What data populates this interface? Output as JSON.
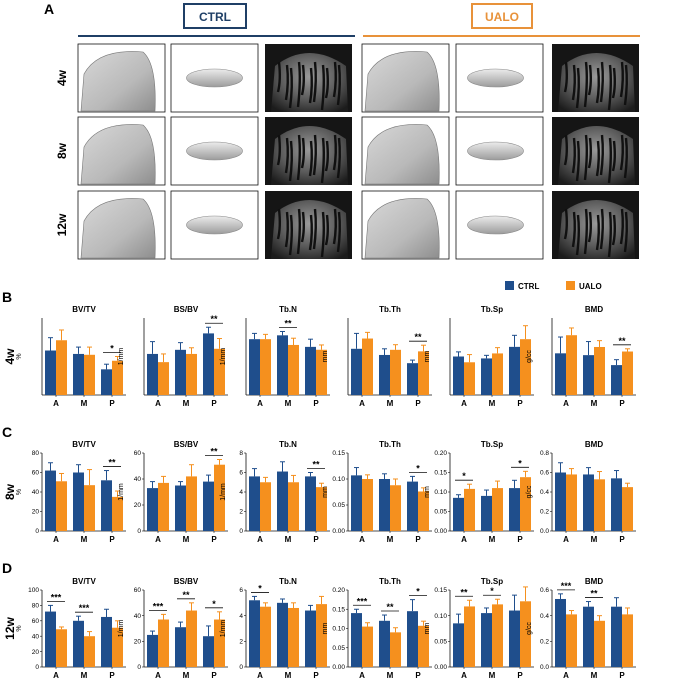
{
  "panels": {
    "A": "A",
    "B": "B",
    "C": "C",
    "D": "D"
  },
  "groups": {
    "ctrl": "CTRL",
    "ualo": "UALO"
  },
  "legend": {
    "ctrl": "CTRL",
    "ualo": "UALO"
  },
  "rows_A": [
    "4w",
    "8w",
    "12w"
  ],
  "colors": {
    "ctrl": "#1f4e8c",
    "ualo": "#f5901e",
    "ctrl_box": "#1f3f66",
    "ualo_box": "#e8923a"
  },
  "chart_data": [
    {
      "panel": "B",
      "row": "4w",
      "charts": [
        {
          "title": "BV/TV",
          "unit": "%",
          "ticks": [],
          "ylim": [
            0,
            90
          ],
          "categories": [
            "A",
            "M",
            "P"
          ],
          "ctrl": [
            52,
            48,
            30
          ],
          "ualo": [
            64,
            47,
            40
          ],
          "ctrl_err": [
            15,
            8,
            6
          ],
          "ualo_err": [
            12,
            9,
            5
          ],
          "sig": [
            "",
            "",
            "*"
          ]
        },
        {
          "title": "BS/BV",
          "unit": "1/mm",
          "ticks": [],
          "ylim": [
            0,
            75
          ],
          "categories": [
            "A",
            "M",
            "P"
          ],
          "ctrl": [
            40,
            44,
            60
          ],
          "ualo": [
            32,
            40,
            45
          ],
          "ctrl_err": [
            12,
            7,
            6
          ],
          "ualo_err": [
            8,
            6,
            10
          ],
          "sig": [
            "",
            "",
            "**"
          ]
        },
        {
          "title": "Tb.N",
          "unit": "1/mm",
          "ticks": [],
          "ylim": [
            0,
            8
          ],
          "categories": [
            "A",
            "M",
            "P"
          ],
          "ctrl": [
            5.8,
            6.2,
            5.0
          ],
          "ualo": [
            5.8,
            5.2,
            4.7
          ],
          "ctrl_err": [
            0.6,
            0.4,
            0.8
          ],
          "ualo_err": [
            0.5,
            0.7,
            0.5
          ],
          "sig": [
            "",
            "**",
            ""
          ]
        },
        {
          "title": "Tb.Th",
          "unit": "mm",
          "ticks": [],
          "ylim": [
            0,
            0.15
          ],
          "categories": [
            "A",
            "M",
            "P"
          ],
          "ctrl": [
            0.09,
            0.078,
            0.062
          ],
          "ualo": [
            0.11,
            0.088,
            0.085
          ],
          "ctrl_err": [
            0.03,
            0.012,
            0.006
          ],
          "ualo_err": [
            0.012,
            0.01,
            0.012
          ],
          "sig": [
            "",
            "",
            "**"
          ]
        },
        {
          "title": "Tb.Sp",
          "unit": "mm",
          "ticks": [],
          "ylim": [
            0,
            0.2
          ],
          "categories": [
            "A",
            "M",
            "P"
          ],
          "ctrl": [
            0.1,
            0.095,
            0.125
          ],
          "ualo": [
            0.085,
            0.108,
            0.145
          ],
          "ctrl_err": [
            0.012,
            0.008,
            0.03
          ],
          "ualo_err": [
            0.02,
            0.015,
            0.035
          ],
          "sig": [
            "",
            "",
            ""
          ]
        },
        {
          "title": "BMD",
          "unit": "g/cc",
          "ticks": [],
          "ylim": [
            0,
            0.85
          ],
          "categories": [
            "A",
            "M",
            "P"
          ],
          "ctrl": [
            0.46,
            0.44,
            0.33
          ],
          "ualo": [
            0.66,
            0.53,
            0.48
          ],
          "ctrl_err": [
            0.18,
            0.15,
            0.06
          ],
          "ualo_err": [
            0.08,
            0.07,
            0.03
          ],
          "sig": [
            "",
            "",
            "**"
          ]
        }
      ]
    },
    {
      "panel": "C",
      "row": "8w",
      "charts": [
        {
          "title": "BV/TV",
          "unit": "%",
          "ticks": [
            "0",
            "20",
            "40",
            "60",
            "80"
          ],
          "ylim": [
            0,
            80
          ],
          "categories": [
            "A",
            "M",
            "P"
          ],
          "ctrl": [
            62,
            60,
            52
          ],
          "ualo": [
            51,
            47,
            35
          ],
          "ctrl_err": [
            8,
            8,
            10
          ],
          "ualo_err": [
            8,
            16,
            6
          ],
          "sig": [
            "",
            "",
            "**"
          ]
        },
        {
          "title": "BS/BV",
          "unit": "1/mm",
          "ticks": [
            "0",
            "20",
            "40",
            "60"
          ],
          "ylim": [
            0,
            60
          ],
          "categories": [
            "A",
            "M",
            "P"
          ],
          "ctrl": [
            33,
            35,
            38
          ],
          "ualo": [
            37,
            42,
            51
          ],
          "ctrl_err": [
            5,
            3,
            5
          ],
          "ualo_err": [
            5,
            9,
            4
          ],
          "sig": [
            "",
            "",
            "**"
          ]
        },
        {
          "title": "Tb.N",
          "unit": "1/mm",
          "ticks": [
            "0",
            "2",
            "4",
            "6",
            "8"
          ],
          "ylim": [
            0,
            8
          ],
          "categories": [
            "A",
            "M",
            "P"
          ],
          "ctrl": [
            5.6,
            6.1,
            5.6
          ],
          "ualo": [
            5.0,
            5.0,
            4.5
          ],
          "ctrl_err": [
            0.8,
            1.0,
            0.4
          ],
          "ualo_err": [
            0.5,
            0.7,
            0.4
          ],
          "sig": [
            "",
            "",
            "**"
          ]
        },
        {
          "title": "Tb.Th",
          "unit": "mm",
          "ticks": [
            "0.00",
            "0.05",
            "0.10",
            "0.15"
          ],
          "ylim": [
            0,
            0.15
          ],
          "categories": [
            "A",
            "M",
            "P"
          ],
          "ctrl": [
            0.107,
            0.1,
            0.095
          ],
          "ualo": [
            0.1,
            0.088,
            0.076
          ],
          "ctrl_err": [
            0.015,
            0.01,
            0.01
          ],
          "ualo_err": [
            0.008,
            0.012,
            0.007
          ],
          "sig": [
            "",
            "",
            "*"
          ]
        },
        {
          "title": "Tb.Sp",
          "unit": "mm",
          "ticks": [
            "0.00",
            "0.05",
            "0.10",
            "0.15",
            "0.20"
          ],
          "ylim": [
            0,
            0.2
          ],
          "categories": [
            "A",
            "M",
            "P"
          ],
          "ctrl": [
            0.085,
            0.09,
            0.11
          ],
          "ualo": [
            0.108,
            0.11,
            0.138
          ],
          "ctrl_err": [
            0.008,
            0.015,
            0.02
          ],
          "ualo_err": [
            0.012,
            0.018,
            0.015
          ],
          "sig": [
            "*",
            "",
            "*"
          ]
        },
        {
          "title": "BMD",
          "unit": "g/cc",
          "ticks": [
            "0.0",
            "0.2",
            "0.4",
            "0.6",
            "0.8"
          ],
          "ylim": [
            0,
            0.8
          ],
          "categories": [
            "A",
            "M",
            "P"
          ],
          "ctrl": [
            0.6,
            0.58,
            0.54
          ],
          "ualo": [
            0.58,
            0.53,
            0.45
          ],
          "ctrl_err": [
            0.1,
            0.07,
            0.08
          ],
          "ualo_err": [
            0.06,
            0.08,
            0.04
          ],
          "sig": [
            "",
            "",
            ""
          ]
        }
      ]
    },
    {
      "panel": "D",
      "row": "12w",
      "charts": [
        {
          "title": "BV/TV",
          "unit": "%",
          "ticks": [
            "0",
            "20",
            "40",
            "60",
            "80",
            "100"
          ],
          "ylim": [
            0,
            100
          ],
          "categories": [
            "A",
            "M",
            "P"
          ],
          "ctrl": [
            72,
            60,
            65
          ],
          "ualo": [
            49,
            40,
            51
          ],
          "ctrl_err": [
            8,
            6,
            10
          ],
          "ualo_err": [
            3,
            6,
            9
          ],
          "sig": [
            "***",
            "***",
            ""
          ]
        },
        {
          "title": "BS/BV",
          "unit": "1/mm",
          "ticks": [
            "0",
            "20",
            "40",
            "60"
          ],
          "ylim": [
            0,
            60
          ],
          "categories": [
            "A",
            "M",
            "P"
          ],
          "ctrl": [
            25,
            31,
            24
          ],
          "ualo": [
            37,
            44,
            37
          ],
          "ctrl_err": [
            3,
            4,
            8
          ],
          "ualo_err": [
            4,
            6,
            6
          ],
          "sig": [
            "***",
            "**",
            "*"
          ]
        },
        {
          "title": "Tb.N",
          "unit": "1/mm",
          "ticks": [
            "0",
            "2",
            "4",
            "6"
          ],
          "ylim": [
            0,
            6
          ],
          "categories": [
            "A",
            "M",
            "P"
          ],
          "ctrl": [
            5.2,
            5.0,
            4.4
          ],
          "ualo": [
            4.7,
            4.6,
            4.9
          ],
          "ctrl_err": [
            0.3,
            0.3,
            0.4
          ],
          "ualo_err": [
            0.3,
            0.4,
            0.6
          ],
          "sig": [
            "*",
            "",
            ""
          ]
        },
        {
          "title": "Tb.Th",
          "unit": "mm",
          "ticks": [
            "0.00",
            "0.05",
            "0.10",
            "0.15",
            "0.20"
          ],
          "ylim": [
            0,
            0.2
          ],
          "categories": [
            "A",
            "M",
            "P"
          ],
          "ctrl": [
            0.14,
            0.12,
            0.145
          ],
          "ualo": [
            0.105,
            0.09,
            0.107
          ],
          "ctrl_err": [
            0.01,
            0.015,
            0.03
          ],
          "ualo_err": [
            0.01,
            0.012,
            0.012
          ],
          "sig": [
            "***",
            "**",
            "*"
          ]
        },
        {
          "title": "Tb.Sp",
          "unit": "mm",
          "ticks": [
            "0.00",
            "0.05",
            "0.10",
            "0.15"
          ],
          "ylim": [
            0,
            0.15
          ],
          "categories": [
            "A",
            "M",
            "P"
          ],
          "ctrl": [
            0.085,
            0.105,
            0.11
          ],
          "ualo": [
            0.118,
            0.122,
            0.128
          ],
          "ctrl_err": [
            0.018,
            0.01,
            0.03
          ],
          "ualo_err": [
            0.012,
            0.01,
            0.028
          ],
          "sig": [
            "**",
            "*",
            ""
          ]
        },
        {
          "title": "BMD",
          "unit": "g/cc",
          "ticks": [
            "0.0",
            "0.2",
            "0.4",
            "0.6"
          ],
          "ylim": [
            0,
            0.6
          ],
          "categories": [
            "A",
            "M",
            "P"
          ],
          "ctrl": [
            0.53,
            0.47,
            0.47
          ],
          "ualo": [
            0.41,
            0.36,
            0.41
          ],
          "ctrl_err": [
            0.04,
            0.04,
            0.07
          ],
          "ualo_err": [
            0.03,
            0.04,
            0.05
          ],
          "sig": [
            "***",
            "**",
            ""
          ]
        }
      ]
    }
  ]
}
